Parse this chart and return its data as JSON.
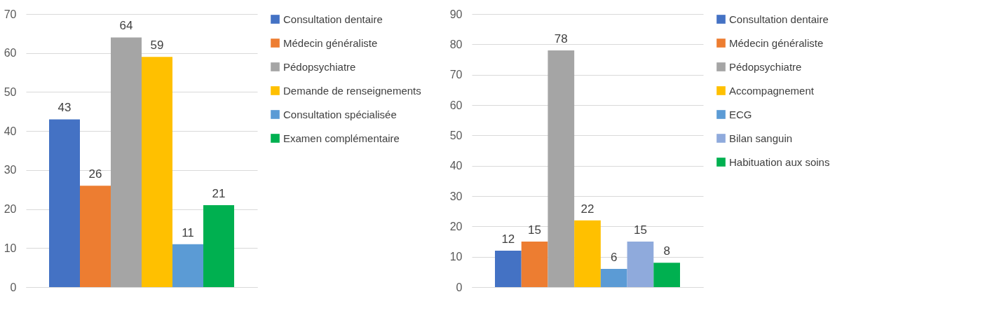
{
  "chart_data": [
    {
      "type": "bar",
      "categories": [
        null
      ],
      "ylim": [
        0,
        70
      ],
      "yticks": [
        0,
        10,
        20,
        30,
        40,
        50,
        60,
        70
      ],
      "grid": "y",
      "legend": "right",
      "data_labels": true,
      "series": [
        {
          "name": "Consultation dentaire",
          "color": "#4472c4",
          "values": [
            43
          ]
        },
        {
          "name": "Médecin généraliste",
          "color": "#ed7d31",
          "values": [
            26
          ]
        },
        {
          "name": "Pédopsychiatre",
          "color": "#a5a5a5",
          "values": [
            64
          ]
        },
        {
          "name": "Demande de renseignements",
          "color": "#ffc000",
          "values": [
            59
          ]
        },
        {
          "name": "Consultation spécialisée",
          "color": "#5b9bd5",
          "values": [
            11
          ]
        },
        {
          "name": "Examen complémentaire",
          "color": "#00b050",
          "values": [
            21
          ]
        }
      ]
    },
    {
      "type": "bar",
      "categories": [
        null
      ],
      "ylim": [
        0,
        90
      ],
      "yticks": [
        0,
        10,
        20,
        30,
        40,
        50,
        60,
        70,
        80,
        90
      ],
      "grid": "y",
      "legend": "right",
      "data_labels": true,
      "series": [
        {
          "name": "Consultation dentaire",
          "color": "#4472c4",
          "values": [
            12
          ]
        },
        {
          "name": "Médecin généraliste",
          "color": "#ed7d31",
          "values": [
            15
          ]
        },
        {
          "name": "Pédopsychiatre",
          "color": "#a5a5a5",
          "values": [
            78
          ]
        },
        {
          "name": "Accompagnement",
          "color": "#ffc000",
          "values": [
            22
          ]
        },
        {
          "name": "ECG",
          "color": "#5b9bd5",
          "values": [
            6
          ]
        },
        {
          "name": "Bilan sanguin",
          "color": "#8faadc",
          "values": [
            15
          ]
        },
        {
          "name": "Habituation aux soins",
          "color": "#00b050",
          "values": [
            8
          ]
        }
      ]
    }
  ]
}
